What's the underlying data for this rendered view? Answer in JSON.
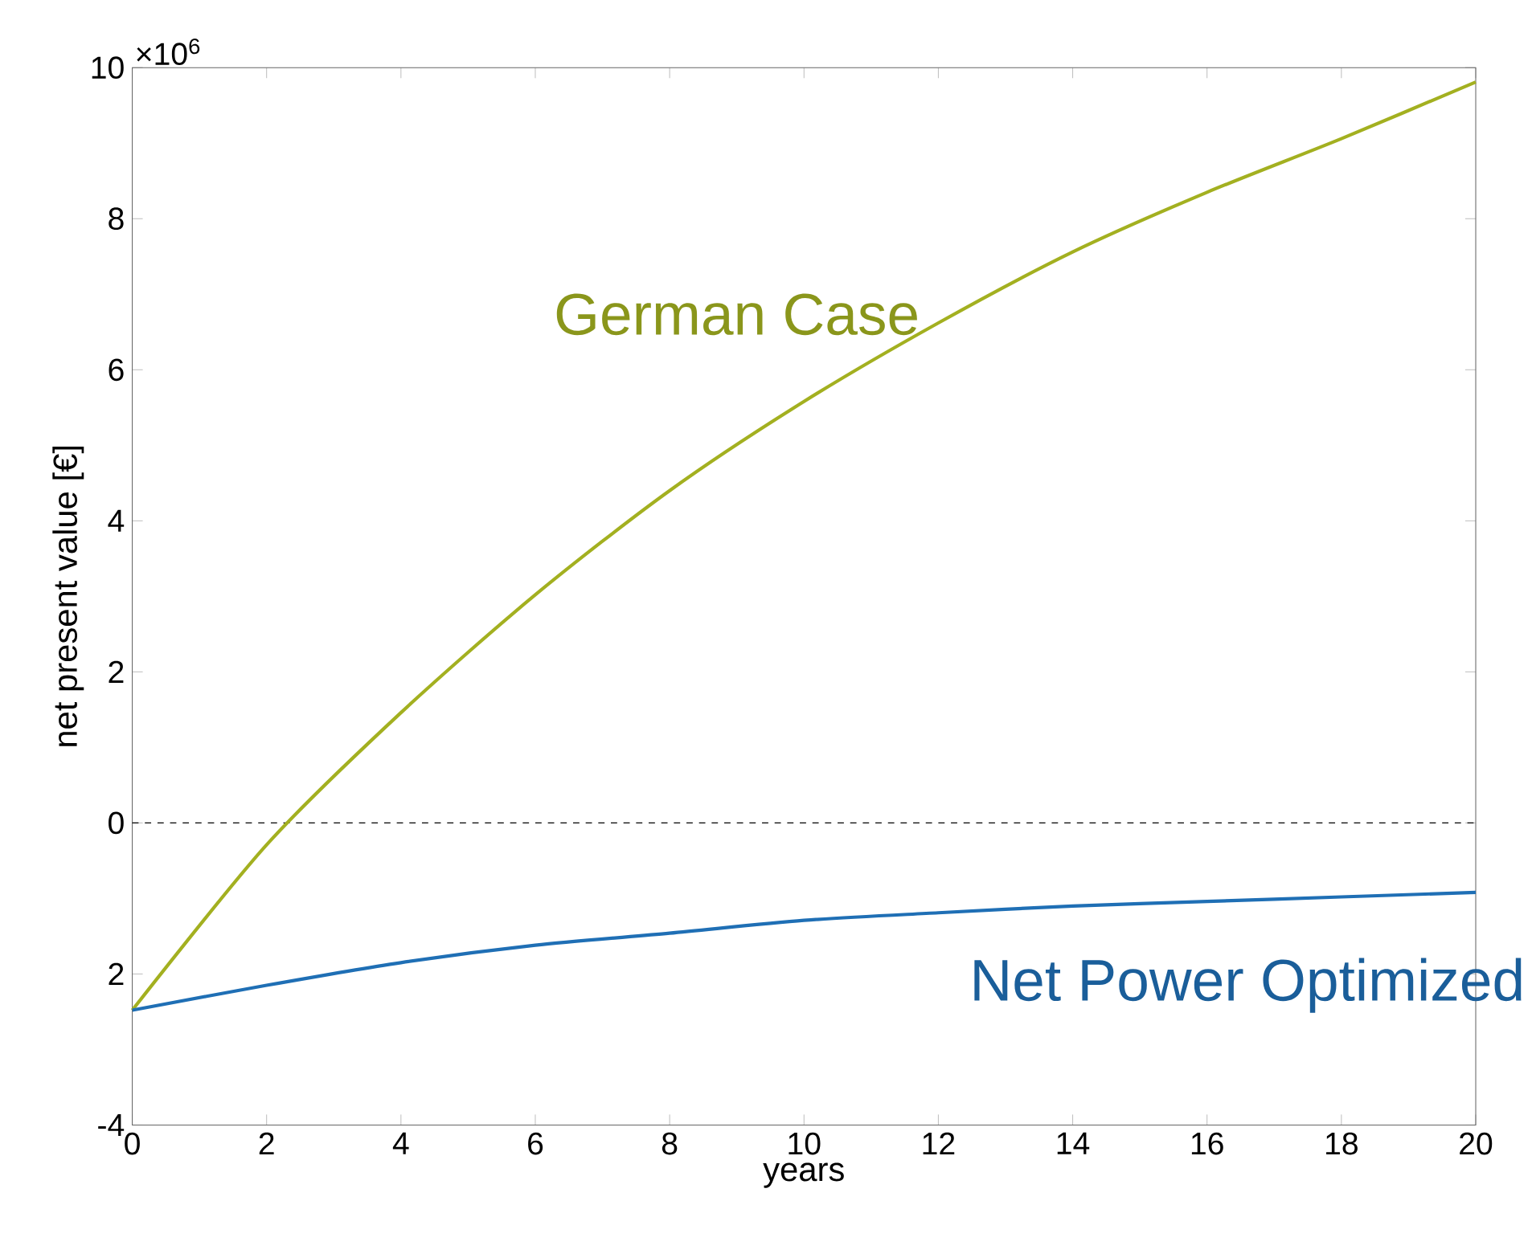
{
  "chart_data": {
    "type": "line",
    "xlabel": "years",
    "ylabel": "net present value [€]",
    "x": [
      0,
      2,
      4,
      6,
      8,
      10,
      12,
      14,
      16,
      18,
      20
    ],
    "series": [
      {
        "name": "German Case",
        "color": "#a3b020",
        "values": [
          -2.48,
          -0.29,
          1.46,
          3.02,
          4.4,
          5.58,
          6.62,
          7.56,
          8.35,
          9.06,
          9.81
        ]
      },
      {
        "name": "Net Power Optimized",
        "color": "#1f6fb5",
        "values": [
          -2.48,
          -2.15,
          -1.85,
          -1.62,
          -1.46,
          -1.29,
          -1.19,
          -1.1,
          -1.04,
          -0.98,
          -0.92
        ]
      }
    ],
    "xlim": [
      0,
      20
    ],
    "ylim": [
      -4,
      10
    ],
    "xticks": [
      0,
      2,
      4,
      6,
      8,
      10,
      12,
      14,
      16,
      18,
      20
    ],
    "yticks": [
      -4,
      {
        "value": -2,
        "label": "2"
      },
      0,
      2,
      4,
      6,
      8,
      10
    ],
    "ref_lines": [
      {
        "axis": "y",
        "value": 0,
        "color": "#000000",
        "line_style": "dashed"
      }
    ],
    "annotations": [
      "×10$^{6}$"
    ]
  }
}
